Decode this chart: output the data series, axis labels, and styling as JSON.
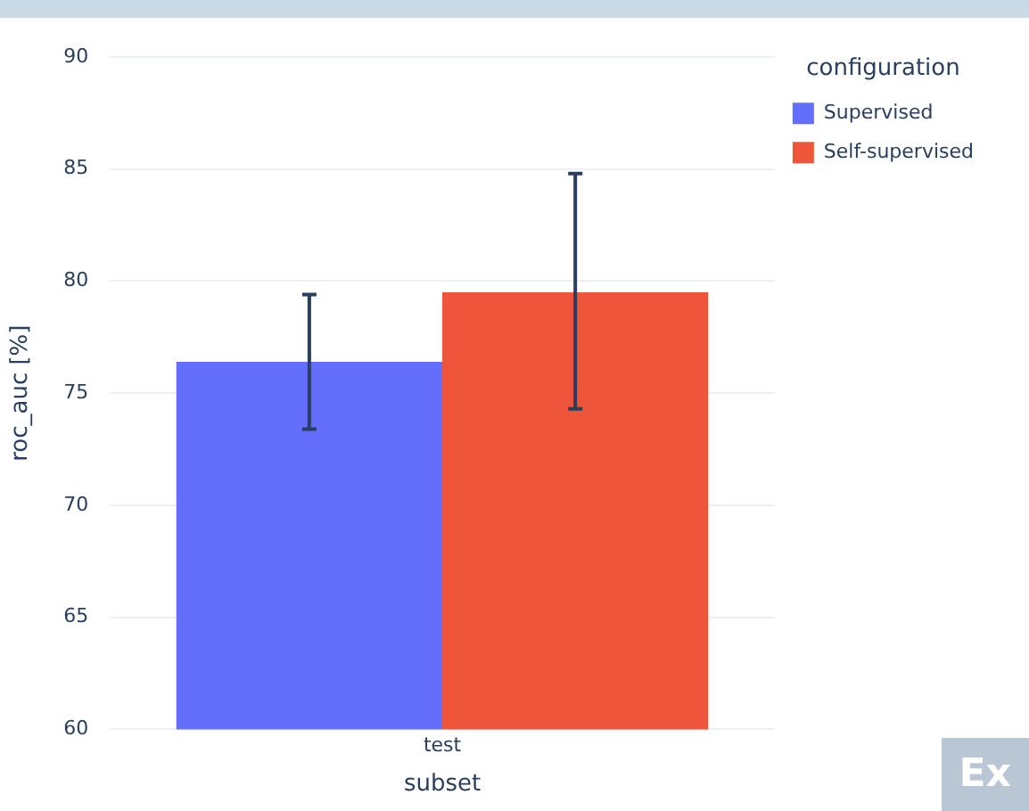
{
  "chart_data": {
    "type": "bar",
    "xlabel": "subset",
    "ylabel": "roc_auc [%]",
    "legend_title": "configuration",
    "categories": [
      "test"
    ],
    "series": [
      {
        "name": "Supervised",
        "color": "#636efa",
        "values": [
          76.4
        ],
        "errors": [
          [
            73.4,
            79.4
          ]
        ]
      },
      {
        "name": "Self-supervised",
        "color": "#ef553b",
        "values": [
          79.5
        ],
        "errors": [
          [
            74.3,
            84.8
          ]
        ]
      }
    ],
    "ylim": [
      60,
      90
    ],
    "yticks": [
      60,
      65,
      70,
      75,
      80,
      85,
      90
    ],
    "grid": "y",
    "legend": "top right",
    "annotations": [
      "Ex"
    ]
  }
}
